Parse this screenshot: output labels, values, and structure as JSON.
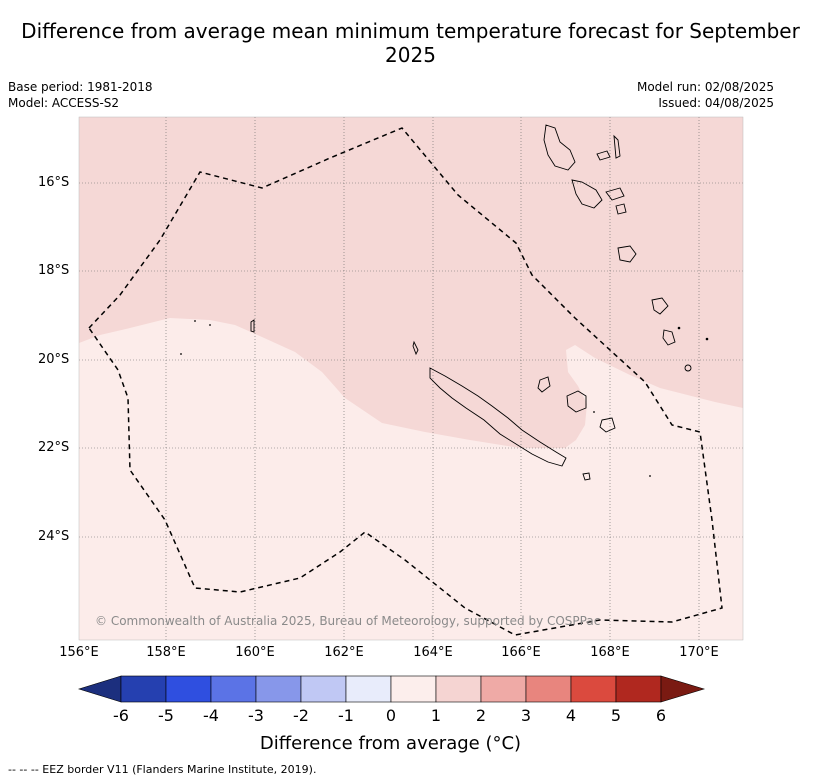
{
  "title": "Difference from average mean minimum temperature forecast for September 2025",
  "base_period": "Base period: 1981-2018",
  "model": "Model: ACCESS-S2",
  "model_run": "Model run: 02/08/2025",
  "issued": "Issued: 04/08/2025",
  "copyright": "© Commonwealth of Australia 2025, Bureau of Meteorology, supported by COSPPac",
  "latitudes": [
    "16°S",
    "18°S",
    "20°S",
    "22°S",
    "24°S"
  ],
  "longitudes": [
    "156°E",
    "158°E",
    "160°E",
    "162°E",
    "164°E",
    "166°E",
    "168°E",
    "170°E"
  ],
  "colorbar": {
    "title": "Difference from average (°C)",
    "ticks": [
      "-6",
      "-5",
      "-4",
      "-3",
      "-2",
      "-1",
      "0",
      "1",
      "2",
      "3",
      "4",
      "5",
      "6"
    ],
    "colors": [
      "#1c2f7e",
      "#2540b0",
      "#2f4fe0",
      "#5b73e6",
      "#8797ea",
      "#c0c8f4",
      "#e8ecfb",
      "#fceeec",
      "#f5d4d2",
      "#efaaa6",
      "#e8857e",
      "#db4a3e",
      "#b0281f",
      "#7a1a12"
    ]
  },
  "legend_fill": {
    "above_1": "#f5d8d6",
    "zero_to_1": "#fcecea"
  },
  "footnote": "-- -- -- EEZ border V11 (Flanders Marine Institute, 2019)."
}
